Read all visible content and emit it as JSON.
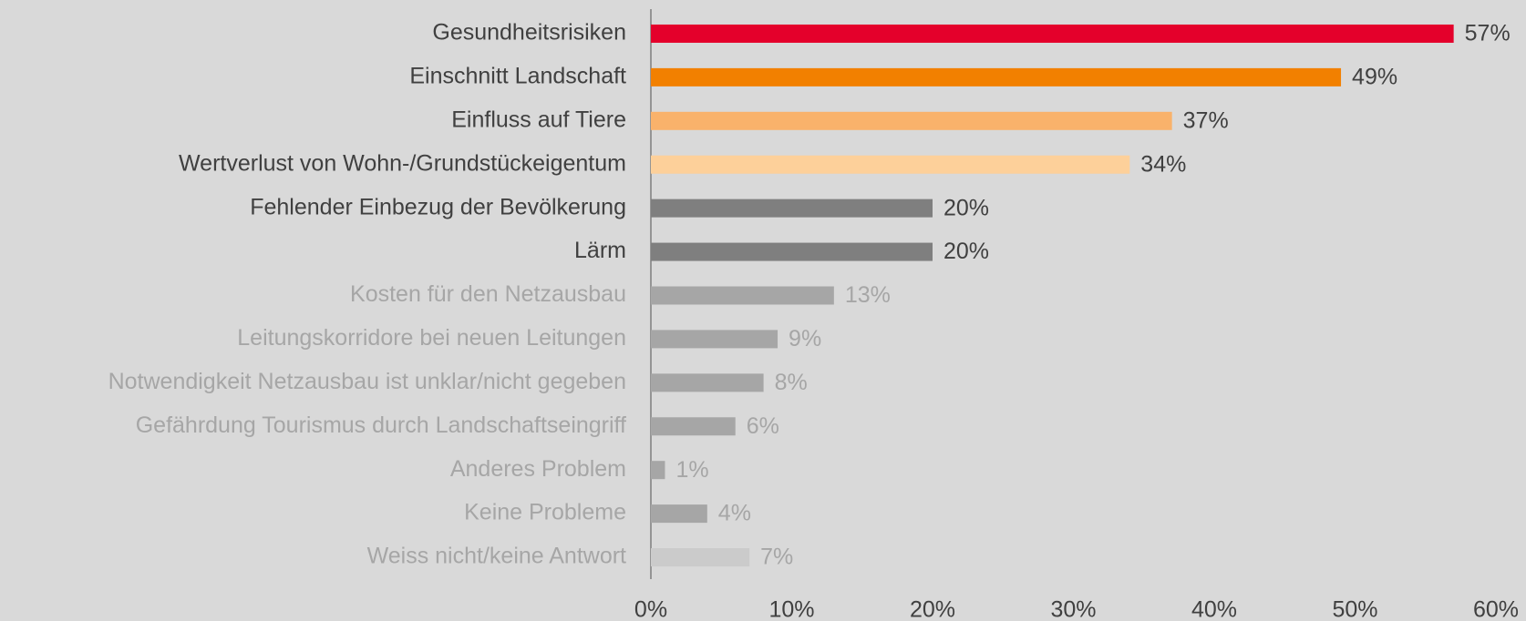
{
  "chart_data": {
    "type": "bar",
    "orientation": "horizontal",
    "categories": [
      "Gesundheitsrisiken",
      "Einschnitt Landschaft",
      "Einfluss auf Tiere",
      "Wertverlust von Wohn-/Grundstückeigentum",
      "Fehlender Einbezug der Bevölkerung",
      "Lärm",
      "Kosten für den Netzausbau",
      "Leitungskorridore bei neuen Leitungen",
      "Notwendigkeit Netzausbau ist unklar/nicht gegeben",
      "Gefährdung Tourismus durch Landschaftseingriff",
      "Anderes Problem",
      "Keine Probleme",
      "Weiss nicht/keine Antwort"
    ],
    "values": [
      57,
      49,
      37,
      34,
      20,
      20,
      13,
      9,
      8,
      6,
      1,
      4,
      7
    ],
    "value_labels": [
      "57%",
      "49%",
      "37%",
      "34%",
      "20%",
      "20%",
      "13%",
      "9%",
      "8%",
      "6%",
      "1%",
      "4%",
      "7%"
    ],
    "colors": [
      "#e4002b",
      "#f28000",
      "#f9b26b",
      "#fdd09a",
      "#7f7f7f",
      "#7f7f7f",
      "#a6a6a6",
      "#a6a6a6",
      "#a6a6a6",
      "#a6a6a6",
      "#a6a6a6",
      "#a6a6a6",
      "#cbcbcb"
    ],
    "label_colors": [
      "#404040",
      "#404040",
      "#404040",
      "#404040",
      "#404040",
      "#404040",
      "#a6a6a6",
      "#a6a6a6",
      "#a6a6a6",
      "#a6a6a6",
      "#a6a6a6",
      "#a6a6a6",
      "#a6a6a6"
    ],
    "xlim": [
      0,
      60
    ],
    "xticks": [
      {
        "value": 0,
        "label": "0%"
      },
      {
        "value": 10,
        "label": "10%"
      },
      {
        "value": 20,
        "label": "20%"
      },
      {
        "value": 30,
        "label": "30%"
      },
      {
        "value": 40,
        "label": "40%"
      },
      {
        "value": 50,
        "label": "50%"
      },
      {
        "value": 60,
        "label": "60%"
      }
    ]
  }
}
